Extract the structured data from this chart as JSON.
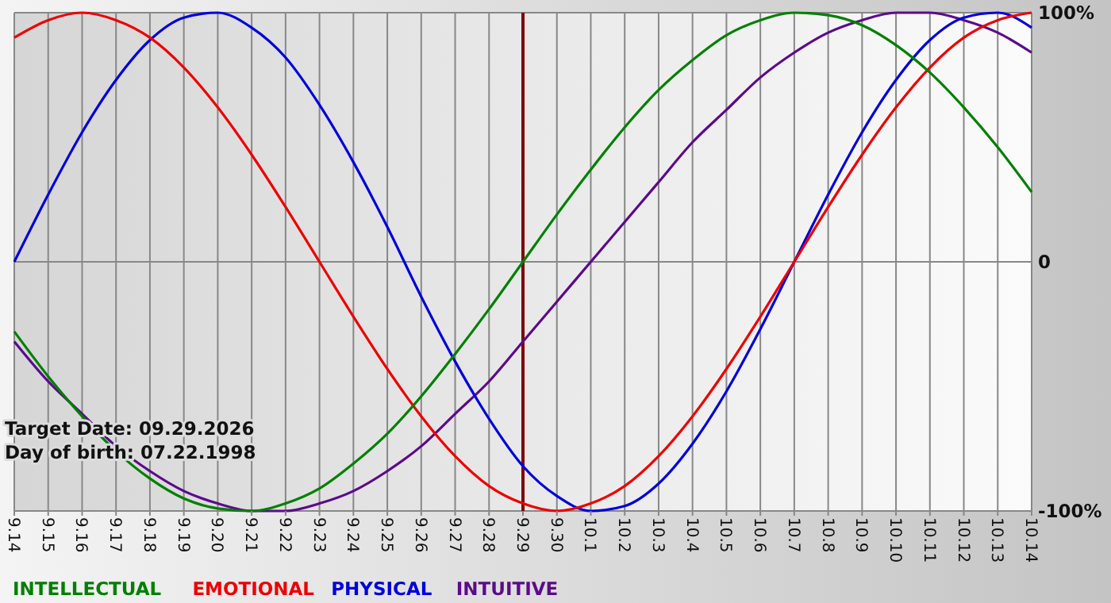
{
  "chart_data": {
    "type": "line",
    "categories": [
      "9.14",
      "9.15",
      "9.16",
      "9.17",
      "9.18",
      "9.19",
      "9.20",
      "9.21",
      "9.22",
      "9.23",
      "9.24",
      "9.25",
      "9.26",
      "9.27",
      "9.28",
      "9.29",
      "9.30",
      "10.1",
      "10.2",
      "10.3",
      "10.4",
      "10.5",
      "10.6",
      "10.7",
      "10.8",
      "10.9",
      "10.10",
      "10.11",
      "10.12",
      "10.13",
      "10.14"
    ],
    "series": [
      {
        "name": "INTELLECTUAL",
        "color": "#008000",
        "values": [
          -28,
          -46,
          -62,
          -76,
          -87,
          -95,
          -99,
          -100,
          -97,
          -91,
          -81,
          -69,
          -54,
          -37,
          -19,
          0,
          19,
          37,
          54,
          69,
          81,
          91,
          97,
          100,
          99,
          95,
          87,
          76,
          62,
          46,
          28
        ]
      },
      {
        "name": "EMOTIONAL",
        "color": "#ee0000",
        "values": [
          90,
          97,
          100,
          97,
          90,
          78,
          62,
          43,
          22,
          0,
          -22,
          -43,
          -62,
          -78,
          -90,
          -97,
          -100,
          -97,
          -90,
          -78,
          -62,
          -43,
          -22,
          0,
          22,
          43,
          62,
          78,
          90,
          97,
          100
        ]
      },
      {
        "name": "PHYSICAL",
        "color": "#0000dd",
        "values": [
          0,
          27,
          52,
          73,
          89,
          98,
          100,
          94,
          82,
          63,
          40,
          14,
          -14,
          -40,
          -63,
          -82,
          -94,
          -100,
          -98,
          -89,
          -73,
          -52,
          -27,
          0,
          27,
          52,
          73,
          89,
          98,
          100,
          94
        ]
      },
      {
        "name": "INTUITIVE",
        "color": "#5c0a8c",
        "values": [
          -32,
          -48,
          -61,
          -74,
          -84,
          -92,
          -97,
          -100,
          -100,
          -97,
          -92,
          -84,
          -74,
          -61,
          -48,
          -32,
          -16,
          0,
          16,
          32,
          48,
          61,
          74,
          84,
          92,
          97,
          100,
          100,
          97,
          92,
          84
        ]
      }
    ],
    "ylim": [
      -100,
      100
    ],
    "yticks": [
      {
        "value": 100,
        "label": "100%"
      },
      0,
      {
        "value": -100,
        "label": "-100%"
      }
    ],
    "grid": true,
    "legend": "bottom left",
    "marker": "none",
    "ref_lines": [
      {
        "axis": "x",
        "value": "9.29",
        "color": "#800000"
      }
    ],
    "annotations": [
      "Target Date: 09.29.2026",
      "Day of birth: 07.22.1998"
    ]
  }
}
